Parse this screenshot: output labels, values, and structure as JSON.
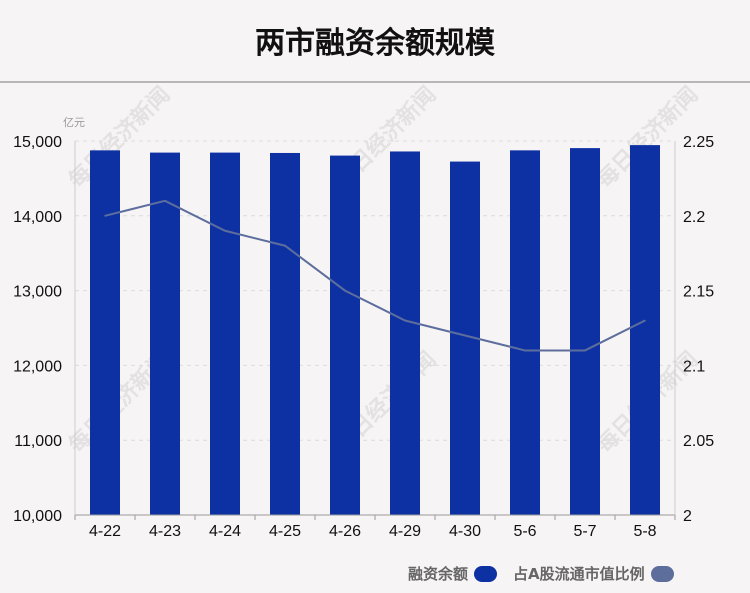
{
  "title": "两市融资余额规模",
  "unit_label": "亿元",
  "watermark": "每日经济新闻",
  "legend": {
    "bar_label": "融资余额",
    "line_label": "占A股流通市值比例"
  },
  "colors": {
    "bar": "#0d31a3",
    "line": "#5d6e9c"
  },
  "chart_data": {
    "type": "bar",
    "title": "两市融资余额规模",
    "categories": [
      "4-22",
      "4-23",
      "4-24",
      "4-25",
      "4-26",
      "4-29",
      "4-30",
      "5-6",
      "5-7",
      "5-8"
    ],
    "series": [
      {
        "name": "融资余额",
        "type": "bar",
        "axis": "left",
        "values": [
          14875,
          14845,
          14845,
          14840,
          14805,
          14860,
          14725,
          14875,
          14905,
          14945
        ]
      },
      {
        "name": "占A股流通市值比例",
        "type": "line",
        "axis": "right",
        "values": [
          2.2,
          2.21,
          2.19,
          2.18,
          2.15,
          2.13,
          2.12,
          2.11,
          2.11,
          2.13
        ]
      }
    ],
    "y_left": {
      "label": "亿元",
      "range": [
        10000,
        15000
      ],
      "ticks": [
        "10,000",
        "11,000",
        "12,000",
        "13,000",
        "14,000",
        "15,000"
      ]
    },
    "y_right": {
      "range": [
        2,
        2.25
      ],
      "ticks": [
        "2",
        "2.05",
        "2.1",
        "2.15",
        "2.2",
        "2.25"
      ]
    },
    "grid": "horizontal dashed",
    "legend_position": "bottom-right"
  }
}
